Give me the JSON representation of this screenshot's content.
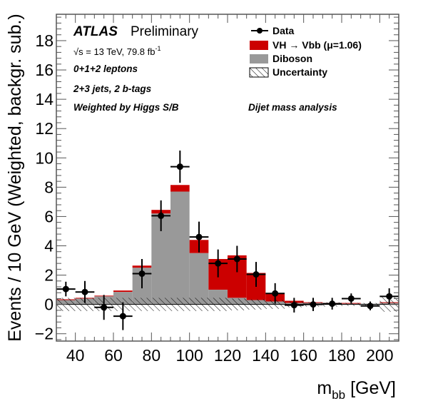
{
  "chart_data": {
    "type": "bar",
    "subtype": "stacked-histogram-with-data-points",
    "xlabel_main": "m",
    "xlabel_sub": "bb",
    "xlabel_unit": " [GeV]",
    "ylabel": "Events / 10 GeV (Weighted, backgr. sub.)",
    "xlim": [
      30,
      210
    ],
    "ylim": [
      -2.5,
      19.8
    ],
    "xticks": [
      40,
      60,
      80,
      100,
      120,
      140,
      160,
      180,
      200
    ],
    "xtick_labels": [
      "40",
      "60",
      "80",
      "100",
      "120",
      "140",
      "160",
      "180",
      "200"
    ],
    "yticks": [
      -2,
      0,
      2,
      4,
      6,
      8,
      10,
      12,
      14,
      16,
      18
    ],
    "ytick_labels": [
      "−2",
      "0",
      "2",
      "4",
      "6",
      "8",
      "10",
      "12",
      "14",
      "16",
      "18"
    ],
    "bin_edges": [
      30,
      40,
      50,
      60,
      70,
      80,
      90,
      100,
      110,
      120,
      130,
      140,
      150,
      160,
      170,
      180,
      190,
      200,
      210
    ],
    "series": [
      {
        "name": "Diboson",
        "color": "#999999",
        "values": [
          0.3,
          0.4,
          0.55,
          0.85,
          2.5,
          6.2,
          7.7,
          3.5,
          1.0,
          0.45,
          0.3,
          0.2,
          0.1,
          0.1,
          0.05,
          0.05,
          0.05,
          0.1
        ]
      },
      {
        "name": "VH → Vbb (μ=1.06)",
        "color": "#cc0000",
        "values": [
          0.05,
          0.05,
          0.05,
          0.1,
          0.15,
          0.25,
          0.45,
          0.9,
          2.1,
          2.9,
          1.85,
          0.55,
          0.15,
          0.05,
          0.05,
          0.05,
          0.0,
          0.05
        ]
      }
    ],
    "data_points": {
      "name": "Data",
      "x": [
        35,
        45,
        55,
        65,
        75,
        85,
        95,
        105,
        115,
        125,
        135,
        145,
        155,
        165,
        175,
        185,
        195,
        205
      ],
      "y": [
        1.05,
        0.85,
        -0.2,
        -0.8,
        2.1,
        6.05,
        9.4,
        4.6,
        2.8,
        3.1,
        2.05,
        0.75,
        -0.05,
        0.0,
        0.05,
        0.4,
        -0.1,
        0.55
      ],
      "yerr": [
        0.5,
        0.75,
        0.85,
        0.95,
        1.0,
        1.05,
        1.1,
        1.05,
        0.95,
        0.9,
        0.85,
        0.7,
        0.5,
        0.45,
        0.4,
        0.35,
        0.3,
        0.55
      ]
    },
    "uncertainty": {
      "name": "Uncertainty",
      "values": [
        0.45,
        0.45,
        0.45,
        0.45,
        0.45,
        0.45,
        0.45,
        0.45,
        0.45,
        0.4,
        0.35,
        0.3,
        0.2,
        0.15,
        0.15,
        0.1,
        0.1,
        0.5
      ]
    },
    "legend": {
      "position": "top-right",
      "entries": [
        {
          "label": "Data",
          "kind": "marker"
        },
        {
          "label": "VH → Vbb (μ=1.06)",
          "kind": "fill",
          "color": "#cc0000"
        },
        {
          "label": "Diboson",
          "kind": "fill",
          "color": "#999999"
        },
        {
          "label": "Uncertainty",
          "kind": "hatch"
        }
      ]
    },
    "annotations": {
      "atlas": "ATLAS",
      "preliminary": "Preliminary",
      "energy": "√s = 13 TeV, 79.8 fb",
      "energy_sup": "-1",
      "channel": "0+1+2 leptons",
      "jets": "2+3 jets, 2 b-tags",
      "weighting": "Weighted by Higgs S/B",
      "analysis": "Dijet mass analysis"
    }
  }
}
